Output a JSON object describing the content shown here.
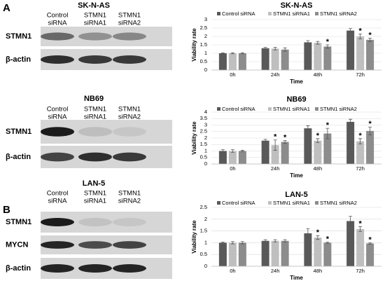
{
  "panels": [
    "A",
    "B"
  ],
  "blots": [
    {
      "title": "SK-N-AS",
      "columns": [
        [
          "Control",
          "siRNA"
        ],
        [
          "STMN1",
          "siRNA1"
        ],
        [
          "STMN1",
          "siRNA2"
        ]
      ],
      "rows": [
        "STMN1",
        "β-actin"
      ]
    },
    {
      "title": "NB69",
      "columns": [
        [
          "Control",
          "siRNA"
        ],
        [
          "STMN1",
          "siRNA1"
        ],
        [
          "STMN1",
          "siRNA2"
        ]
      ],
      "rows": [
        "STMN1",
        "β-actin"
      ]
    },
    {
      "title": "LAN-5",
      "columns": [
        [
          "Control",
          "siRNA"
        ],
        [
          "STMN1",
          "siRNA1"
        ],
        [
          "STMN1",
          "siRNA2"
        ]
      ],
      "rows": [
        "STMN1",
        "MYCN",
        "β-actin"
      ]
    }
  ],
  "chart_data": [
    {
      "type": "bar",
      "title": "SK-N-AS",
      "y_label": "Viability rate",
      "x_label": "Time",
      "categories": [
        "0h",
        "24h",
        "48h",
        "72h"
      ],
      "ylim": [
        0,
        3
      ],
      "yticks": [
        0,
        0.5,
        1,
        1.5,
        2,
        2.5,
        3
      ],
      "legend": "top",
      "series": [
        {
          "name": "Control siRNA",
          "color": "#595959",
          "values": [
            1.0,
            1.3,
            1.65,
            2.35
          ],
          "errors": [
            0.03,
            0.05,
            0.1,
            0.12
          ]
        },
        {
          "name": "STMN1 siRNA1",
          "color": "#bfbfbf",
          "values": [
            1.0,
            1.28,
            1.62,
            2.0
          ],
          "errors": [
            0.03,
            0.08,
            0.08,
            0.15
          ],
          "sig": [
            null,
            null,
            null,
            "*"
          ]
        },
        {
          "name": "STMN1 siRNA2",
          "color": "#8c8c8c",
          "values": [
            1.0,
            1.22,
            1.4,
            1.8
          ],
          "errors": [
            0.03,
            0.1,
            0.1,
            0.1
          ],
          "sig": [
            null,
            null,
            "*",
            "*"
          ]
        }
      ]
    },
    {
      "type": "bar",
      "title": "NB69",
      "y_label": "Viability rate",
      "x_label": "Time",
      "categories": [
        "0h",
        "24h",
        "48h",
        "72h"
      ],
      "ylim": [
        0,
        4
      ],
      "yticks": [
        0,
        0.5,
        1,
        1.5,
        2,
        2.5,
        3,
        3.5,
        4
      ],
      "legend": "top",
      "series": [
        {
          "name": "Control siRNA",
          "color": "#595959",
          "values": [
            1.0,
            1.8,
            2.75,
            3.25
          ],
          "errors": [
            0.1,
            0.1,
            0.2,
            0.2
          ]
        },
        {
          "name": "STMN1 siRNA1",
          "color": "#bfbfbf",
          "values": [
            1.0,
            1.45,
            1.8,
            1.75
          ],
          "errors": [
            0.1,
            0.4,
            0.15,
            0.2
          ],
          "sig": [
            null,
            "*",
            "*",
            "*"
          ]
        },
        {
          "name": "STMN1 siRNA2",
          "color": "#8c8c8c",
          "values": [
            1.0,
            1.7,
            2.35,
            2.55
          ],
          "errors": [
            0.05,
            0.1,
            0.4,
            0.3
          ],
          "sig": [
            null,
            "*",
            "*",
            "*"
          ]
        }
      ]
    },
    {
      "type": "bar",
      "title": "LAN-5",
      "y_label": "Viability rate",
      "x_label": "Time",
      "categories": [
        "0h",
        "24h",
        "48h",
        "72h"
      ],
      "ylim": [
        0,
        2.5
      ],
      "yticks": [
        0,
        0.5,
        1,
        1.5,
        2,
        2.5
      ],
      "legend": "top",
      "series": [
        {
          "name": "Control siRNA",
          "color": "#595959",
          "values": [
            1.0,
            1.08,
            1.4,
            1.92
          ],
          "errors": [
            0.03,
            0.05,
            0.2,
            0.2
          ]
        },
        {
          "name": "STMN1 siRNA1",
          "color": "#bfbfbf",
          "values": [
            1.0,
            1.08,
            1.22,
            1.58
          ],
          "errors": [
            0.05,
            0.05,
            0.08,
            0.1
          ],
          "sig": [
            null,
            null,
            "*",
            "*"
          ]
        },
        {
          "name": "STMN1 siRNA2",
          "color": "#8c8c8c",
          "values": [
            1.0,
            1.08,
            1.0,
            0.97
          ],
          "errors": [
            0.05,
            0.05,
            0.03,
            0.03
          ],
          "sig": [
            null,
            null,
            "*",
            "*"
          ]
        }
      ]
    }
  ]
}
